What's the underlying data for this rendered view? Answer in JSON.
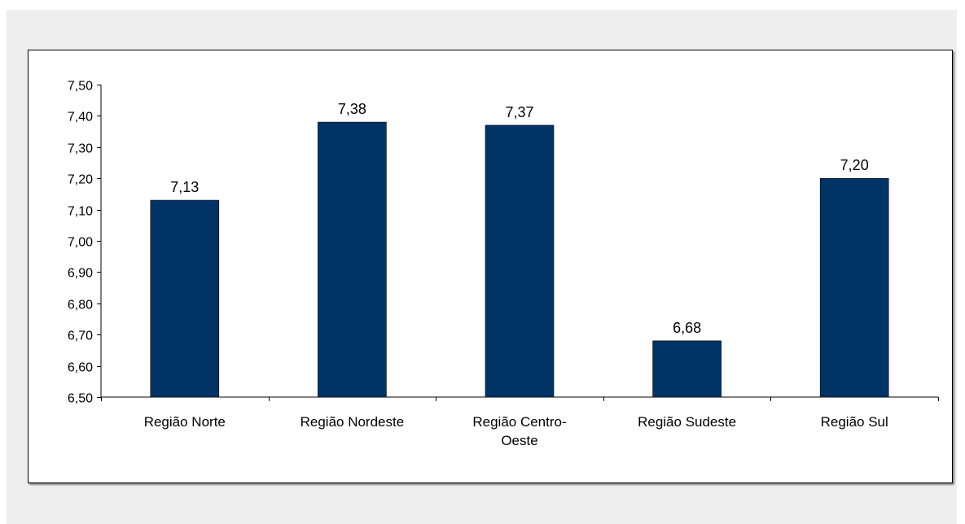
{
  "colors": {
    "bar": "#003366",
    "background": "#eeeeee",
    "plot_background": "#ffffff",
    "axis": "#000000"
  },
  "chart_data": {
    "type": "bar",
    "categories": [
      "Região Norte",
      "Região Nordeste",
      "Região Centro-Oeste",
      "Região Sudeste",
      "Região Sul"
    ],
    "category_lines": [
      [
        "Região Norte"
      ],
      [
        "Região Nordeste"
      ],
      [
        "Região Centro-",
        "Oeste"
      ],
      [
        "Região Sudeste"
      ],
      [
        "Região Sul"
      ]
    ],
    "values": [
      7.13,
      7.38,
      7.37,
      6.68,
      7.2
    ],
    "data_labels": [
      "7,13",
      "7,38",
      "7,37",
      "6,68",
      "7,20"
    ],
    "ylim": [
      6.5,
      7.5
    ],
    "yticks": [
      6.5,
      6.6,
      6.7,
      6.8,
      6.9,
      7.0,
      7.1,
      7.2,
      7.3,
      7.4,
      7.5
    ],
    "ytick_labels": [
      "6,50",
      "6,60",
      "6,70",
      "6,80",
      "6,90",
      "7,00",
      "7,10",
      "7,20",
      "7,30",
      "7,40",
      "7,50"
    ],
    "title": "",
    "xlabel": "",
    "ylabel": "",
    "grid": false,
    "legend": "none"
  }
}
